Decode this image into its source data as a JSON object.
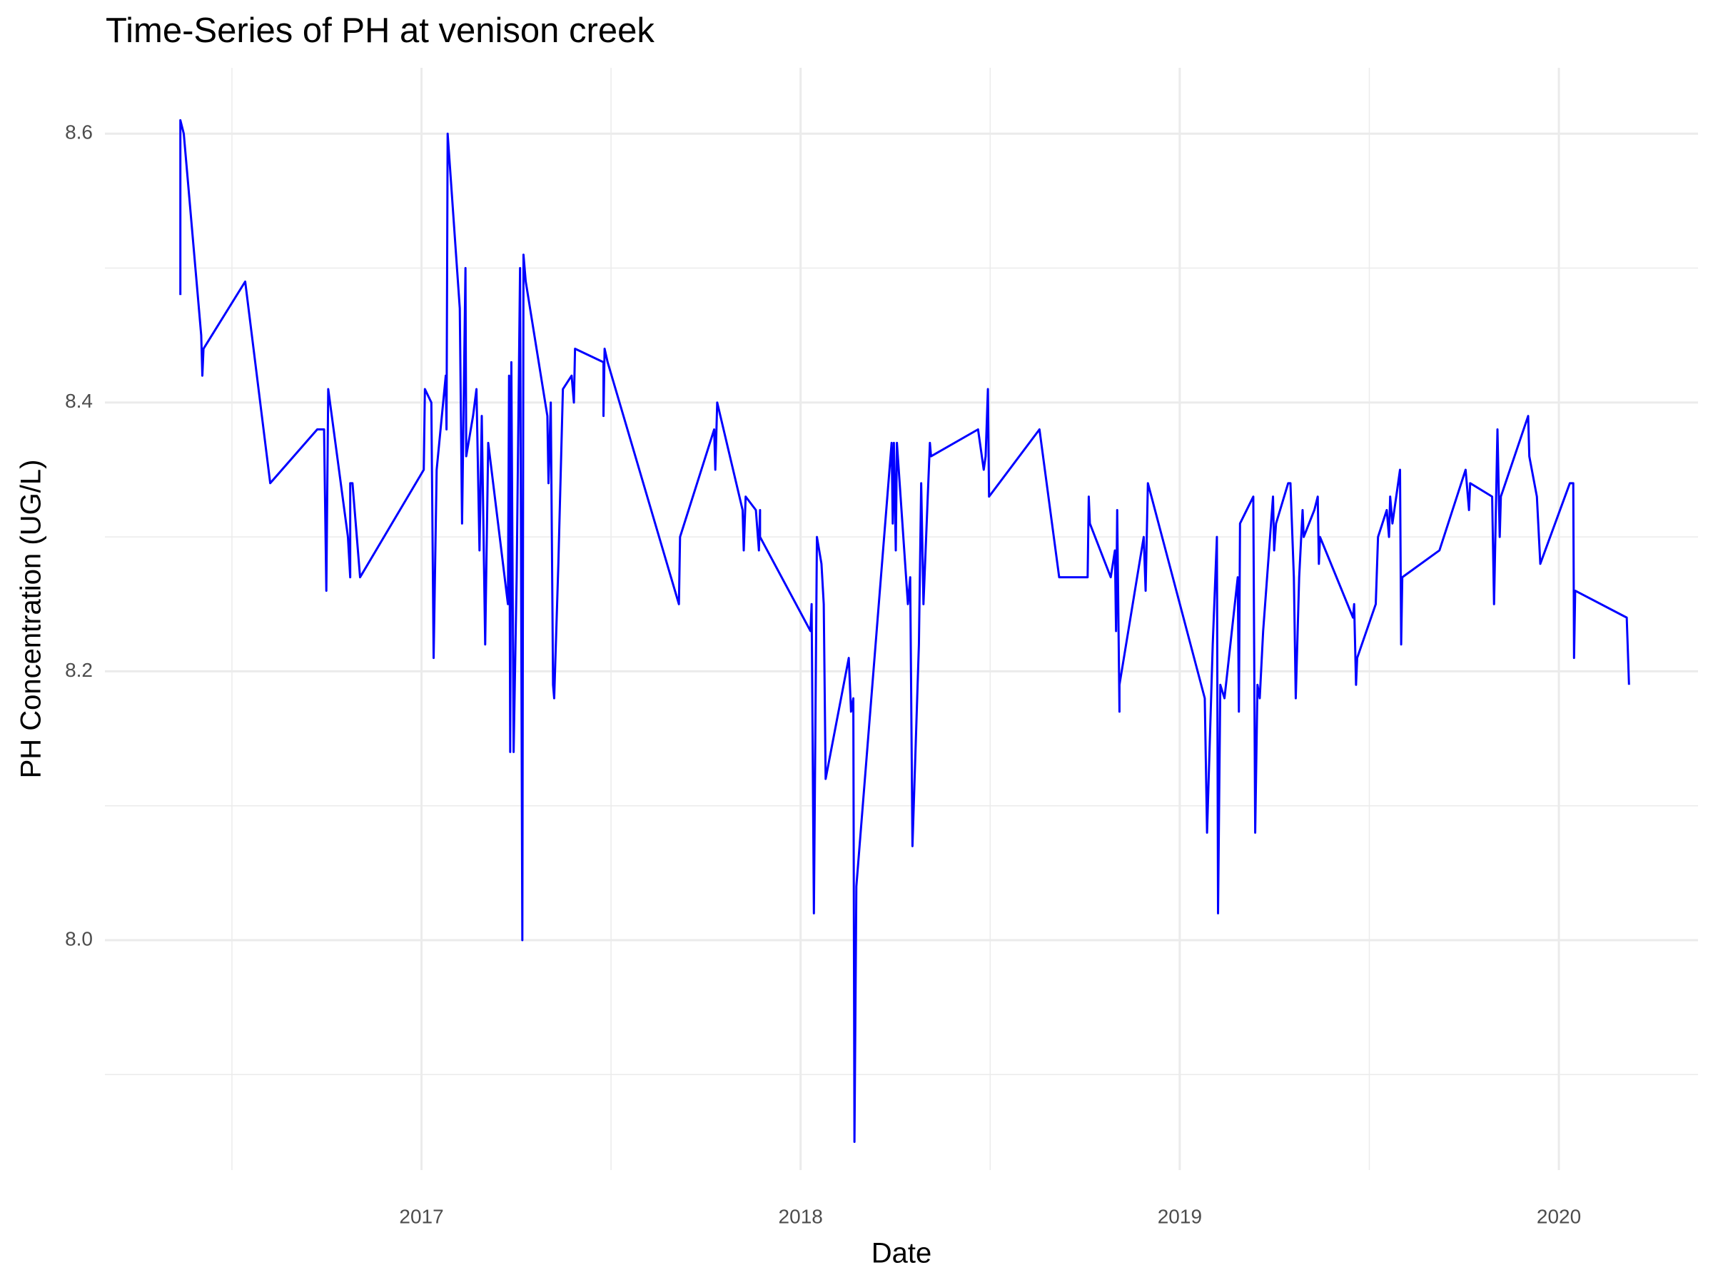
{
  "chart_data": {
    "type": "line",
    "title": "Time-Series of PH at venison creek",
    "x_label": "Date",
    "y_label": "PH Concentration (UG/L)",
    "color": "#0000ff",
    "grid": true,
    "xlim": [
      2016.165,
      2020.367
    ],
    "ylim": [
      7.829,
      8.649
    ],
    "xticks": [
      2017,
      2018,
      2019,
      2020
    ],
    "yticks": [
      {
        "value": 8,
        "label": "8.0"
      },
      8.2,
      8.4,
      8.6
    ],
    "x": [
      2016.364,
      2016.364,
      2016.373,
      2016.419,
      2016.422,
      2016.425,
      2016.535,
      2016.601,
      2016.725,
      2016.743,
      2016.749,
      2016.754,
      2016.806,
      2016.812,
      2016.812,
      2016.818,
      2016.838,
      2017.006,
      2017.009,
      2017.026,
      2017.032,
      2017.04,
      2017.064,
      2017.066,
      2017.069,
      2017.101,
      2017.107,
      2017.116,
      2017.118,
      2017.136,
      2017.145,
      2017.153,
      2017.159,
      2017.168,
      2017.176,
      2017.228,
      2017.231,
      2017.234,
      2017.237,
      2017.243,
      2017.251,
      2017.26,
      2017.266,
      2017.269,
      2017.275,
      2017.332,
      2017.335,
      2017.341,
      2017.347,
      2017.35,
      2017.361,
      2017.373,
      2017.396,
      2017.402,
      2017.405,
      2017.48,
      2017.48,
      2017.483,
      2017.491,
      2017.679,
      2017.682,
      2017.772,
      2017.775,
      2017.78,
      2017.847,
      2017.85,
      2017.855,
      2017.882,
      2017.89,
      2017.893,
      2017.893,
      2018.026,
      2018.029,
      2018.035,
      2018.043,
      2018.055,
      2018.061,
      2018.066,
      2018.127,
      2018.133,
      2018.139,
      2018.142,
      2018.147,
      2018.24,
      2018.243,
      2018.246,
      2018.251,
      2018.254,
      2018.283,
      2018.289,
      2018.295,
      2018.312,
      2018.318,
      2018.324,
      2018.341,
      2018.344,
      2018.468,
      2018.483,
      2018.488,
      2018.494,
      2018.497,
      2018.63,
      2018.682,
      2018.757,
      2018.76,
      2018.763,
      2018.818,
      2018.829,
      2018.832,
      2018.835,
      2018.841,
      2018.841,
      2018.905,
      2018.91,
      2018.916,
      2019.066,
      2019.072,
      2019.087,
      2019.098,
      2019.101,
      2019.107,
      2019.118,
      2019.153,
      2019.156,
      2019.159,
      2019.194,
      2019.199,
      2019.205,
      2019.211,
      2019.22,
      2019.246,
      2019.249,
      2019.254,
      2019.286,
      2019.292,
      2019.301,
      2019.306,
      2019.315,
      2019.324,
      2019.327,
      2019.355,
      2019.364,
      2019.367,
      2019.37,
      2019.457,
      2019.46,
      2019.465,
      2019.468,
      2019.517,
      2019.523,
      2019.546,
      2019.552,
      2019.555,
      2019.561,
      2019.581,
      2019.584,
      2019.587,
      2019.685,
      2019.754,
      2019.763,
      2019.766,
      2019.824,
      2019.829,
      2019.838,
      2019.844,
      2019.847,
      2019.919,
      2019.922,
      2019.942,
      2019.951,
      2020.029,
      2020.038,
      2020.04,
      2020.043,
      2020.179,
      2020.185
    ],
    "values": [
      8.48,
      8.61,
      8.6,
      8.45,
      8.42,
      8.44,
      8.49,
      8.34,
      8.38,
      8.38,
      8.26,
      8.41,
      8.3,
      8.27,
      8.34,
      8.34,
      8.27,
      8.35,
      8.41,
      8.4,
      8.21,
      8.35,
      8.42,
      8.38,
      8.6,
      8.47,
      8.31,
      8.5,
      8.36,
      8.39,
      8.41,
      8.29,
      8.39,
      8.22,
      8.37,
      8.25,
      8.42,
      8.14,
      8.43,
      8.14,
      8.27,
      8.5,
      8.0,
      8.51,
      8.49,
      8.39,
      8.34,
      8.4,
      8.19,
      8.18,
      8.28,
      8.41,
      8.42,
      8.4,
      8.44,
      8.43,
      8.39,
      8.44,
      8.43,
      8.25,
      8.3,
      8.38,
      8.35,
      8.4,
      8.32,
      8.29,
      8.33,
      8.32,
      8.29,
      8.32,
      8.3,
      8.23,
      8.25,
      8.02,
      8.3,
      8.28,
      8.25,
      8.12,
      8.21,
      8.17,
      8.18,
      7.85,
      8.04,
      8.37,
      8.31,
      8.37,
      8.29,
      8.37,
      8.25,
      8.27,
      8.07,
      8.22,
      8.34,
      8.25,
      8.37,
      8.36,
      8.38,
      8.35,
      8.36,
      8.41,
      8.33,
      8.38,
      8.27,
      8.27,
      8.33,
      8.31,
      8.27,
      8.29,
      8.23,
      8.32,
      8.17,
      8.19,
      8.3,
      8.26,
      8.34,
      8.18,
      8.08,
      8.22,
      8.3,
      8.02,
      8.19,
      8.18,
      8.27,
      8.17,
      8.31,
      8.33,
      8.08,
      8.19,
      8.18,
      8.23,
      8.33,
      8.29,
      8.31,
      8.34,
      8.34,
      8.27,
      8.18,
      8.27,
      8.32,
      8.3,
      8.32,
      8.33,
      8.28,
      8.3,
      8.24,
      8.25,
      8.19,
      8.21,
      8.25,
      8.3,
      8.32,
      8.3,
      8.33,
      8.31,
      8.35,
      8.22,
      8.27,
      8.29,
      8.35,
      8.32,
      8.34,
      8.33,
      8.25,
      8.38,
      8.3,
      8.33,
      8.39,
      8.36,
      8.33,
      8.28,
      8.34,
      8.34,
      8.21,
      8.26,
      8.24,
      8.19
    ]
  }
}
